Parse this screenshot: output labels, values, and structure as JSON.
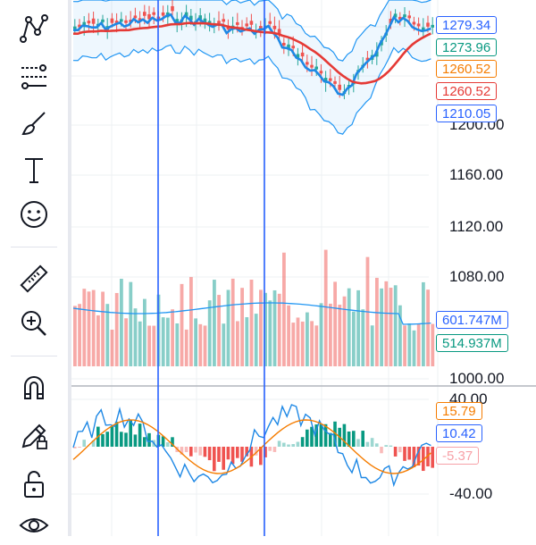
{
  "toolbar": {
    "tools": [
      {
        "name": "trend-line-tool-icon"
      },
      {
        "name": "fib-retracement-tool-icon"
      },
      {
        "name": "brush-tool-icon"
      },
      {
        "name": "text-tool-icon"
      },
      {
        "name": "emoji-tool-icon"
      },
      {
        "name": "measure-ruler-icon"
      },
      {
        "name": "zoom-in-icon"
      },
      {
        "name": "magnet-mode-icon"
      },
      {
        "name": "lock-drawings-pencil-icon"
      },
      {
        "name": "unlock-icon"
      },
      {
        "name": "eye-visibility-icon"
      }
    ]
  },
  "price_axis": {
    "labels": [
      "1200.00",
      "1160.00",
      "1120.00",
      "1080.00",
      "1000.00"
    ]
  },
  "price_tags": [
    {
      "text": "1279.34",
      "color": "#2962ff"
    },
    {
      "text": "1273.96",
      "color": "#089981"
    },
    {
      "text": "1260.52",
      "color": "#f57c00"
    },
    {
      "text": "1260.52",
      "color": "#e53935"
    },
    {
      "text": "1210.05",
      "color": "#2962ff"
    }
  ],
  "volume_tags": [
    {
      "text": "601.747M",
      "color": "#2962ff"
    },
    {
      "text": "514.937M",
      "color": "#089981"
    }
  ],
  "oscillator": {
    "axis_labels": [
      "40.00",
      "-40.00"
    ],
    "tags": [
      {
        "text": "15.79",
        "color": "#f57c00"
      },
      {
        "text": "10.42",
        "color": "#2962ff"
      },
      {
        "text": "-5.37",
        "color": "#f7a1a7"
      }
    ]
  },
  "colors": {
    "up": "#26a69a",
    "down": "#ef5350",
    "band": "#2196f3",
    "ma": "#e53935",
    "oscillator_line": "#f57c00"
  }
}
